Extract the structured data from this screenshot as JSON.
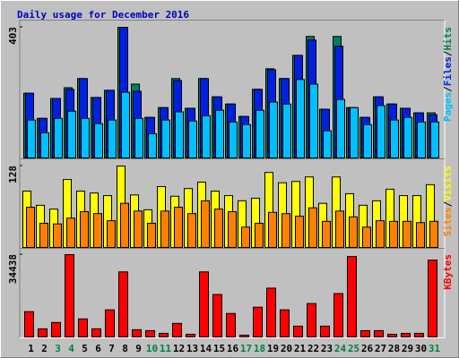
{
  "chart_data": {
    "type": "bar",
    "title": "Daily usage for December 2016",
    "title_color": "#0000c0",
    "categories": [
      "1",
      "2",
      "3",
      "4",
      "5",
      "6",
      "7",
      "8",
      "9",
      "10",
      "11",
      "12",
      "13",
      "14",
      "15",
      "16",
      "17",
      "18",
      "19",
      "20",
      "21",
      "22",
      "23",
      "24",
      "25",
      "26",
      "27",
      "28",
      "29",
      "30",
      "31"
    ],
    "category_colors": [
      "#000000",
      "#000000",
      "#008040",
      "#008040",
      "#000000",
      "#000000",
      "#000000",
      "#000000",
      "#000000",
      "#008040",
      "#008040",
      "#000000",
      "#000000",
      "#000000",
      "#000000",
      "#000000",
      "#008040",
      "#008040",
      "#000000",
      "#000000",
      "#000000",
      "#000000",
      "#000000",
      "#008040",
      "#008040",
      "#000000",
      "#000000",
      "#000000",
      "#000000",
      "#000000",
      "#008040"
    ],
    "legend_separator": "/",
    "panels": [
      {
        "ylim": [
          0,
          403
        ],
        "yticks": [
          403
        ],
        "series": [
          {
            "name": "Hits",
            "color": "#008060",
            "values": [
              201,
              124,
              185,
              218,
              246,
              188,
              210,
              403,
              229,
              127,
              157,
              246,
              155,
              246,
              190,
              168,
              130,
              213,
              276,
              246,
              317,
              375,
              152,
              375,
              157,
              127,
              190,
              168,
              155,
              141,
              141
            ]
          },
          {
            "name": "Files",
            "color": "#0020e0",
            "values": [
              201,
              124,
              185,
              213,
              246,
              188,
              210,
              403,
              207,
              127,
              157,
              240,
              155,
              246,
              190,
              168,
              130,
              213,
              273,
              246,
              317,
              364,
              152,
              345,
              157,
              127,
              190,
              168,
              155,
              141,
              135
            ]
          },
          {
            "name": "Pages",
            "color": "#00c0ff",
            "values": [
              119,
              80,
              124,
              146,
              124,
              108,
              119,
              204,
              124,
              77,
              119,
              144,
              116,
              132,
              149,
              113,
              105,
              149,
              174,
              168,
              243,
              229,
              86,
              182,
              157,
              105,
              163,
              119,
              127,
              113,
              113
            ]
          }
        ]
      },
      {
        "ylim": [
          0,
          128
        ],
        "yticks": [
          128
        ],
        "series": [
          {
            "name": "Visits",
            "color": "#ffff00",
            "values": [
              89,
              67,
              61,
              107,
              89,
              86,
              82,
              128,
              83,
              60,
              96,
              81,
              93,
              103,
              89,
              82,
              74,
              78,
              118,
              102,
              104,
              111,
              70,
              111,
              85,
              67,
              74,
              92,
              82,
              82,
              99
            ]
          },
          {
            "name": "Sites",
            "color": "#ff8000",
            "values": [
              64,
              39,
              38,
              47,
              57,
              54,
              43,
              70,
              58,
              39,
              58,
              64,
              54,
              74,
              61,
              57,
              33,
              39,
              56,
              54,
              50,
              63,
              42,
              58,
              49,
              33,
              43,
              42,
              42,
              40,
              42
            ]
          }
        ]
      },
      {
        "ylim": [
          0,
          34438
        ],
        "yticks": [
          34438
        ],
        "series": [
          {
            "name": "KBytes",
            "color": "#ff0000",
            "values": [
              10850,
              3740,
              6360,
              34438,
              7850,
              3740,
              11600,
              27300,
              3370,
              2990,
              1870,
              5990,
              1500,
              27300,
              17950,
              10100,
              1120,
              12700,
              20570,
              11600,
              4860,
              14210,
              4860,
              18330,
              33660,
              2990,
              2990,
              1500,
              1870,
              1870,
              32160
            ]
          }
        ]
      }
    ]
  }
}
